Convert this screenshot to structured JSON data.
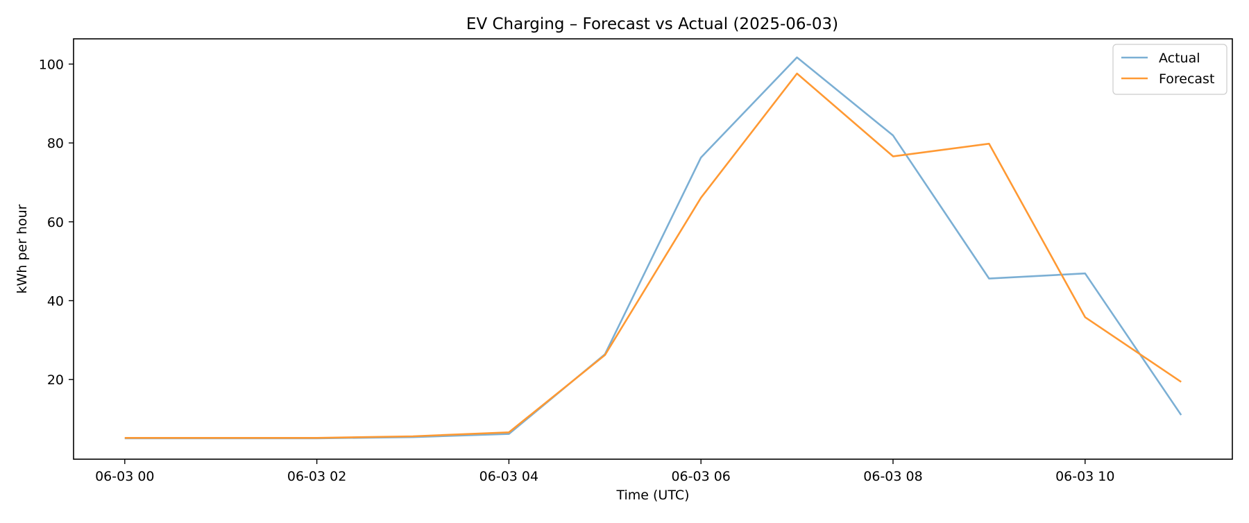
{
  "chart_data": {
    "type": "line",
    "title": "EV Charging – Forecast vs Actual (2025-06-03)",
    "xlabel": "Time (UTC)",
    "ylabel": "kWh per hour",
    "x": [
      "06-03 00",
      "06-03 01",
      "06-03 02",
      "06-03 03",
      "06-03 04",
      "06-03 05",
      "06-03 06",
      "06-03 07",
      "06-03 08",
      "06-03 09",
      "06-03 10",
      "06-03 11"
    ],
    "x_ticks": [
      "06-03 00",
      "06-03 02",
      "06-03 04",
      "06-03 06",
      "06-03 08",
      "06-03 10"
    ],
    "y_ticks": [
      20,
      40,
      60,
      80,
      100
    ],
    "xlim": [
      "06-02 23:28",
      "06-03 11:32"
    ],
    "ylim": [
      -0.2,
      106.4
    ],
    "grid": false,
    "legend_position": "top-right",
    "series": [
      {
        "name": "Actual",
        "color": "#7bafd4",
        "values": [
          5.1,
          5.1,
          5.1,
          5.4,
          6.2,
          26.4,
          76.3,
          101.7,
          81.9,
          45.6,
          46.9,
          11.0
        ]
      },
      {
        "name": "Forecast",
        "color": "#ff9933",
        "values": [
          5.2,
          5.2,
          5.2,
          5.6,
          6.6,
          26.2,
          66.1,
          97.6,
          76.6,
          79.8,
          35.8,
          19.4
        ]
      }
    ]
  }
}
